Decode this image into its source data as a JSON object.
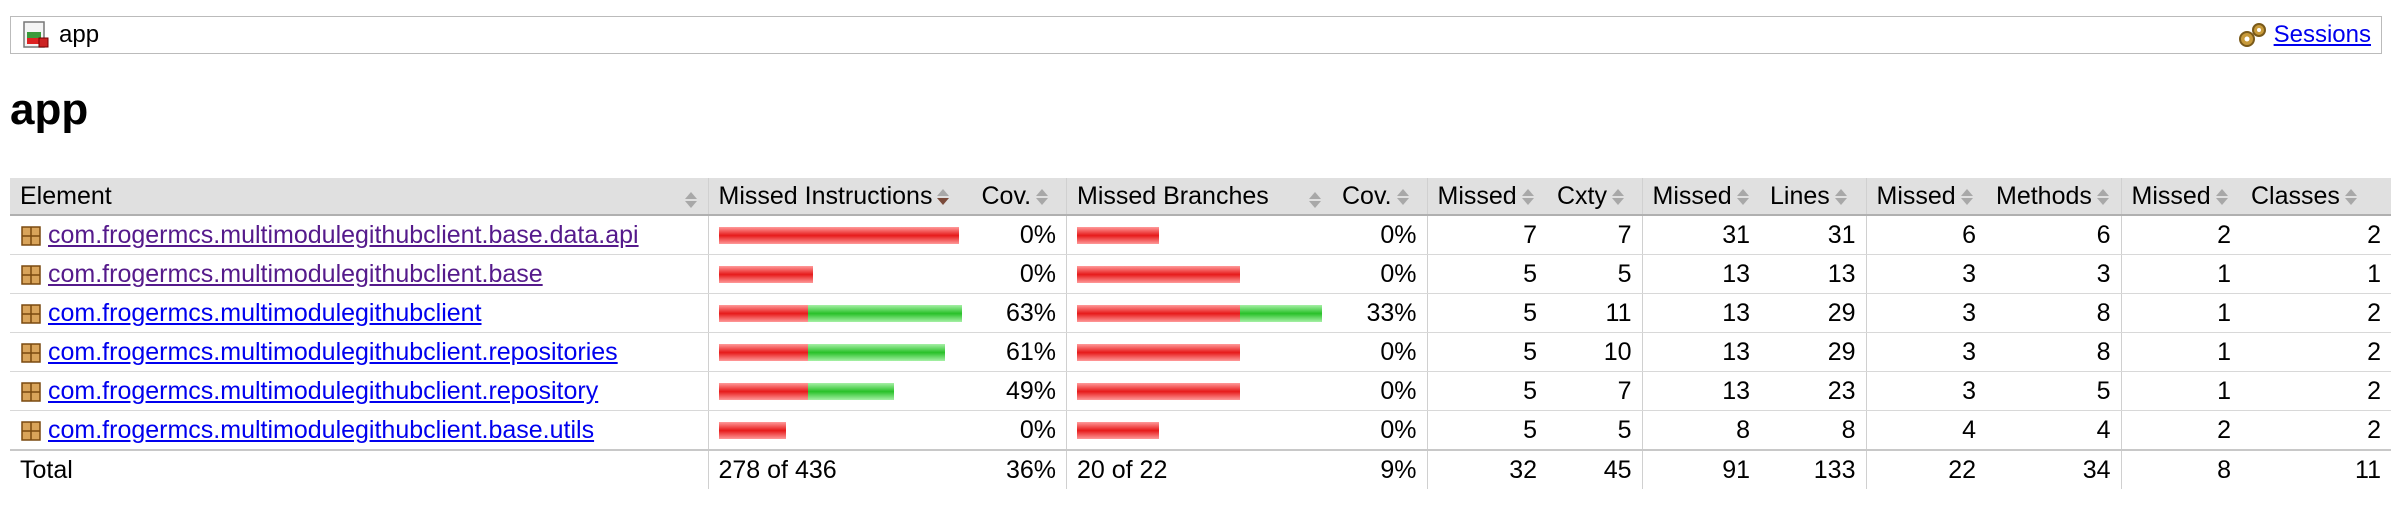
{
  "breadcrumb": {
    "app_label": "app",
    "sessions_label": "Sessions"
  },
  "page_title": "app",
  "colors": {
    "missed": "#e61a1a",
    "covered": "#29c129",
    "header_bg": "#e0e0e0"
  },
  "table": {
    "headers": {
      "element": "Element",
      "missed_instructions": "Missed Instructions",
      "cov1": "Cov.",
      "missed_branches": "Missed Branches",
      "cov2": "Cov.",
      "missed_cxty": "Missed",
      "cxty": "Cxty",
      "missed_lines": "Missed",
      "lines": "Lines",
      "missed_methods": "Missed",
      "methods": "Methods",
      "missed_classes": "Missed",
      "classes": "Classes"
    },
    "rows": [
      {
        "name": "com.frogermcs.multimodulegithubclient.base.data.api",
        "visited": true,
        "instr_missed_frac": 1.0,
        "instr_covered_frac": 0.0,
        "instr_cov": "0%",
        "br_missed_frac": 0.34,
        "br_covered_frac": 0.0,
        "br_cov": "0%",
        "missed_cxty": "7",
        "cxty": "7",
        "missed_lines": "31",
        "lines": "31",
        "missed_methods": "6",
        "methods": "6",
        "missed_classes": "2",
        "classes": "2"
      },
      {
        "name": "com.frogermcs.multimodulegithubclient.base",
        "visited": true,
        "instr_missed_frac": 0.39,
        "instr_covered_frac": 0.0,
        "instr_cov": "0%",
        "br_missed_frac": 0.68,
        "br_covered_frac": 0.0,
        "br_cov": "0%",
        "missed_cxty": "5",
        "cxty": "5",
        "missed_lines": "13",
        "lines": "13",
        "missed_methods": "3",
        "methods": "3",
        "missed_classes": "1",
        "classes": "1"
      },
      {
        "name": "com.frogermcs.multimodulegithubclient",
        "visited": false,
        "instr_missed_frac": 0.37,
        "instr_covered_frac": 0.64,
        "instr_cov": "63%",
        "br_missed_frac": 0.68,
        "br_covered_frac": 0.34,
        "br_cov": "33%",
        "missed_cxty": "5",
        "cxty": "11",
        "missed_lines": "13",
        "lines": "29",
        "missed_methods": "3",
        "methods": "8",
        "missed_classes": "1",
        "classes": "2"
      },
      {
        "name": "com.frogermcs.multimodulegithubclient.repositories",
        "visited": false,
        "instr_missed_frac": 0.37,
        "instr_covered_frac": 0.57,
        "instr_cov": "61%",
        "br_missed_frac": 0.68,
        "br_covered_frac": 0.0,
        "br_cov": "0%",
        "missed_cxty": "5",
        "cxty": "10",
        "missed_lines": "13",
        "lines": "29",
        "missed_methods": "3",
        "methods": "8",
        "missed_classes": "1",
        "classes": "2"
      },
      {
        "name": "com.frogermcs.multimodulegithubclient.repository",
        "visited": false,
        "instr_missed_frac": 0.37,
        "instr_covered_frac": 0.36,
        "instr_cov": "49%",
        "br_missed_frac": 0.68,
        "br_covered_frac": 0.0,
        "br_cov": "0%",
        "missed_cxty": "5",
        "cxty": "7",
        "missed_lines": "13",
        "lines": "23",
        "missed_methods": "3",
        "methods": "5",
        "missed_classes": "1",
        "classes": "2"
      },
      {
        "name": "com.frogermcs.multimodulegithubclient.base.utils",
        "visited": false,
        "instr_missed_frac": 0.28,
        "instr_covered_frac": 0.0,
        "instr_cov": "0%",
        "br_missed_frac": 0.34,
        "br_covered_frac": 0.0,
        "br_cov": "0%",
        "missed_cxty": "5",
        "cxty": "5",
        "missed_lines": "8",
        "lines": "8",
        "missed_methods": "4",
        "methods": "4",
        "missed_classes": "2",
        "classes": "2"
      }
    ],
    "total": {
      "label": "Total",
      "instr": "278 of 436",
      "instr_cov": "36%",
      "br": "20 of 22",
      "br_cov": "9%",
      "missed_cxty": "32",
      "cxty": "45",
      "missed_lines": "91",
      "lines": "133",
      "missed_methods": "22",
      "methods": "34",
      "missed_classes": "8",
      "classes": "11"
    }
  }
}
